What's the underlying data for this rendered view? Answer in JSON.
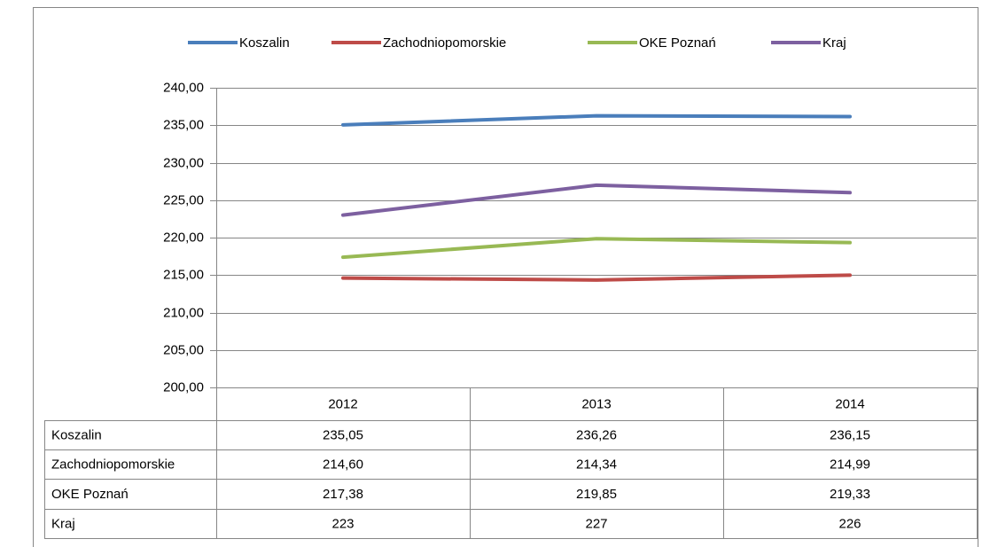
{
  "chart_data": {
    "type": "line",
    "categories": [
      "2012",
      "2013",
      "2014"
    ],
    "series": [
      {
        "name": "Koszalin",
        "color": "#4a7ebb",
        "values": [
          235.05,
          236.26,
          236.15
        ],
        "value_labels": [
          "235,05",
          "236,26",
          "236,15"
        ]
      },
      {
        "name": "Zachodniopomorskie",
        "color": "#be4b48",
        "values": [
          214.6,
          214.34,
          214.99
        ],
        "value_labels": [
          "214,60",
          "214,34",
          "214,99"
        ]
      },
      {
        "name": "OKE Poznań",
        "color": "#98b954",
        "values": [
          217.38,
          219.85,
          219.33
        ],
        "value_labels": [
          "217,38",
          "219,85",
          "219,33"
        ]
      },
      {
        "name": "Kraj",
        "color": "#7d60a0",
        "values": [
          223,
          227,
          226
        ],
        "value_labels": [
          "223",
          "227",
          "226"
        ]
      }
    ],
    "ylim": [
      200,
      240
    ],
    "yticks": [
      {
        "value": 200,
        "label": "200,00"
      },
      {
        "value": 205,
        "label": "205,00"
      },
      {
        "value": 210,
        "label": "210,00"
      },
      {
        "value": 215,
        "label": "215,00"
      },
      {
        "value": 220,
        "label": "220,00"
      },
      {
        "value": 225,
        "label": "225,00"
      },
      {
        "value": 230,
        "label": "230,00"
      },
      {
        "value": 235,
        "label": "235,00"
      },
      {
        "value": 240,
        "label": "240,00"
      }
    ],
    "grid": true,
    "legend": "top"
  }
}
